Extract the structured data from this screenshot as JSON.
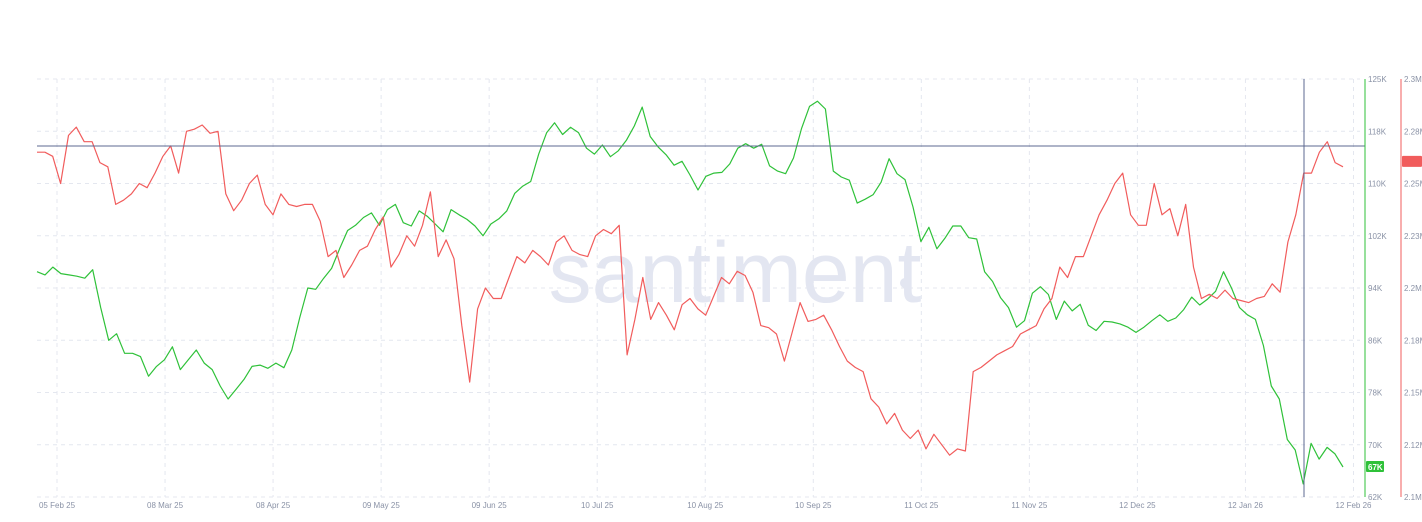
{
  "watermark": "santiment",
  "chart_data": {
    "type": "line",
    "x_labels": [
      "05 Feb 25",
      "08 Mar 25",
      "08 Apr 25",
      "09 May 25",
      "09 Jun 25",
      "10 Jul 25",
      "10 Aug 25",
      "10 Sep 25",
      "11 Oct 25",
      "11 Nov 25",
      "12 Dec 25",
      "12 Jan 26",
      "12 Feb 26"
    ],
    "y_left_ticks": [
      "62K",
      "70K",
      "78K",
      "86K",
      "94K",
      "102K",
      "110K",
      "118K",
      "125K"
    ],
    "y_left_range": [
      62000,
      126000
    ],
    "y_right_ticks": [
      "2.1M",
      "2.12M",
      "2.15M",
      "2.18M",
      "2.2M",
      "2.23M",
      "2.25M",
      "2.28M",
      "2.3M"
    ],
    "y_right_range": [
      2100000,
      2300000
    ],
    "grid": true,
    "crosshair": {
      "x_label": "",
      "y_value_right": 2268000
    },
    "series": [
      {
        "color": "#2fc139",
        "axis": "left",
        "badge": "67K",
        "values": [
          96500,
          96000,
          97200,
          96200,
          96000,
          95800,
          95500,
          96800,
          91000,
          86000,
          87000,
          84000,
          84000,
          83500,
          80500,
          82000,
          83000,
          85000,
          81500,
          83000,
          84500,
          82500,
          81500,
          79000,
          77000,
          78500,
          80000,
          82000,
          82200,
          81700,
          82500,
          81800,
          84500,
          89500,
          94000,
          93800,
          95500,
          97000,
          100000,
          102800,
          103600,
          104800,
          105500,
          103600,
          106000,
          106800,
          104000,
          103500,
          105800,
          105000,
          103800,
          102600,
          106000,
          105200,
          104500,
          103500,
          102000,
          103800,
          104600,
          105800,
          108500,
          109600,
          110300,
          114500,
          117800,
          119300,
          117500,
          118600,
          117800,
          115400,
          114500,
          115900,
          114100,
          115000,
          116600,
          118800,
          121700,
          117200,
          115600,
          114400,
          112800,
          113400,
          111300,
          109000,
          111100,
          111600,
          111700,
          113000,
          115400,
          116100,
          115400,
          116000,
          112700,
          111900,
          111500,
          113900,
          118400,
          121800,
          122600,
          121400,
          111900,
          111000,
          110500,
          107000,
          107600,
          108300,
          110200,
          113800,
          111500,
          110600,
          106400,
          101100,
          103300,
          100000,
          101600,
          103500,
          103500,
          101700,
          101500,
          96500,
          95000,
          92500,
          91000,
          88000,
          89000,
          93200,
          94200,
          93000,
          89200,
          92000,
          90500,
          91500,
          88300,
          87500,
          88900,
          88800,
          88500,
          88000,
          87200,
          88000,
          89000,
          89900,
          88900,
          89400,
          90700,
          92600,
          91400,
          92300,
          93500,
          96500,
          94000,
          91000,
          89900,
          89200,
          85200,
          79000,
          77000,
          70800,
          69200,
          64000,
          70200,
          67800,
          69600,
          68600,
          66600
        ]
      },
      {
        "color": "#f15c5c",
        "axis": "right",
        "values": [
          2265000,
          2265000,
          2263000,
          2250000,
          2273000,
          2277000,
          2270000,
          2270000,
          2260000,
          2258000,
          2240000,
          2242000,
          2245000,
          2250000,
          2248000,
          2255000,
          2263000,
          2268000,
          2255000,
          2275000,
          2276000,
          2278000,
          2274000,
          2275000,
          2245000,
          2237000,
          2242000,
          2250000,
          2254000,
          2240000,
          2235000,
          2245000,
          2240000,
          2239000,
          2240000,
          2240000,
          2232000,
          2215000,
          2218000,
          2205000,
          2211000,
          2218000,
          2220000,
          2228000,
          2234000,
          2210000,
          2216000,
          2225000,
          2220000,
          2230000,
          2246000,
          2215000,
          2223000,
          2214000,
          2182000,
          2155000,
          2190000,
          2200000,
          2195000,
          2195000,
          2205000,
          2215000,
          2212000,
          2218000,
          2215000,
          2211000,
          2222000,
          2225000,
          2218000,
          2216000,
          2215000,
          2225000,
          2228000,
          2226000,
          2230000,
          2168000,
          2185000,
          2205000,
          2185000,
          2193000,
          2187000,
          2180000,
          2192000,
          2195000,
          2190000,
          2187000,
          2196000,
          2205000,
          2202000,
          2208000,
          2206000,
          2198000,
          2182000,
          2181000,
          2178000,
          2165000,
          2179000,
          2193000,
          2184000,
          2185000,
          2187000,
          2180000,
          2172000,
          2165000,
          2162000,
          2160000,
          2147000,
          2143000,
          2135000,
          2140000,
          2132000,
          2128000,
          2132000,
          2123000,
          2130000,
          2125000,
          2120000,
          2123000,
          2122000,
          2160000,
          2162000,
          2165000,
          2168000,
          2170000,
          2172000,
          2178000,
          2180000,
          2182000,
          2190000,
          2195000,
          2210000,
          2205000,
          2215000,
          2215000,
          2225000,
          2235000,
          2242000,
          2250000,
          2255000,
          2235000,
          2230000,
          2230000,
          2250000,
          2235000,
          2238000,
          2225000,
          2240000,
          2210000,
          2195000,
          2197000,
          2195000,
          2199000,
          2195000,
          2194000,
          2193000,
          2195000,
          2196000,
          2202000,
          2198000,
          2222000,
          2235000,
          2255000,
          2255000,
          2265000,
          2270000,
          2260000,
          2258000
        ]
      }
    ]
  }
}
